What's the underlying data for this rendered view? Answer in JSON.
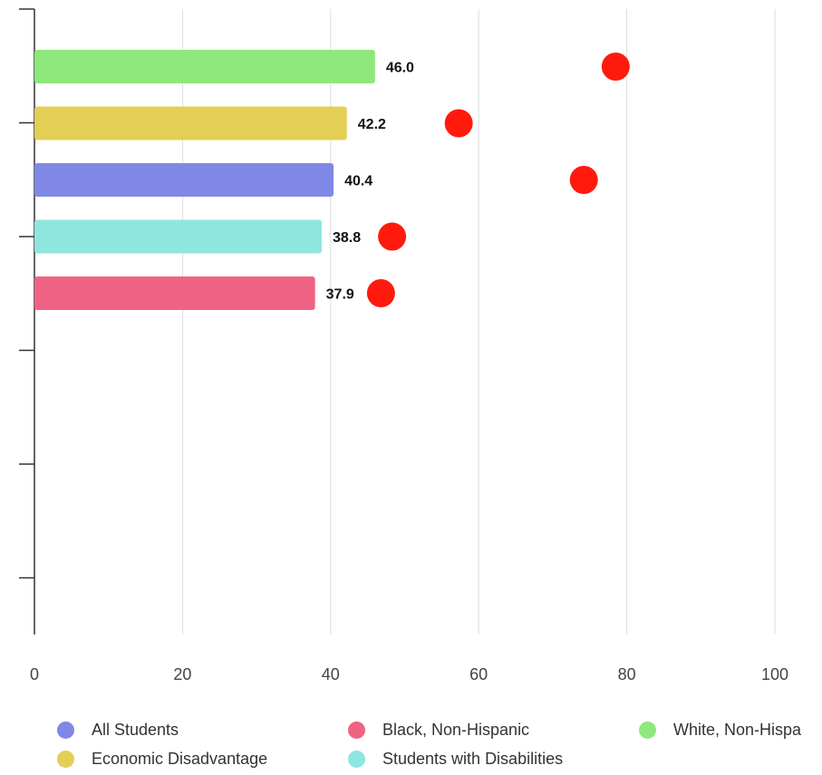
{
  "chart_data": {
    "type": "bar",
    "orientation": "horizontal",
    "x_ticks": [
      0,
      20,
      40,
      60,
      80,
      100
    ],
    "xlim": [
      0,
      100
    ],
    "grid": true,
    "legend_position": "bottom",
    "series": [
      {
        "name": "White, Non-Hispanic",
        "value": 46.0,
        "value_label": "46.0",
        "marker": 78.5,
        "color": "#8ee87c"
      },
      {
        "name": "Economic Disadvantage",
        "value": 42.2,
        "value_label": "42.2",
        "marker": 57.3,
        "color": "#e3cf55"
      },
      {
        "name": "All Students",
        "value": 40.4,
        "value_label": "40.4",
        "marker": 74.2,
        "color": "#8088e6"
      },
      {
        "name": "Students with Disabilities",
        "value": 38.8,
        "value_label": "38.8",
        "marker": 48.3,
        "color": "#8fe6df"
      },
      {
        "name": "Black, Non-Hispanic",
        "value": 37.9,
        "value_label": "37.9",
        "marker": 46.8,
        "color": "#f06283"
      }
    ],
    "marker_color": "#ff1a0d"
  },
  "legend": [
    {
      "label": "All Students",
      "color": "#8088e6"
    },
    {
      "label": "Black, Non-Hispanic",
      "color": "#f06283"
    },
    {
      "label": "White, Non-Hispanic",
      "color": "#8ee87c"
    },
    {
      "label": "Economic Disadvantage",
      "color": "#e3cf55"
    },
    {
      "label": "Students with Disabilities",
      "color": "#8fe6df"
    }
  ]
}
